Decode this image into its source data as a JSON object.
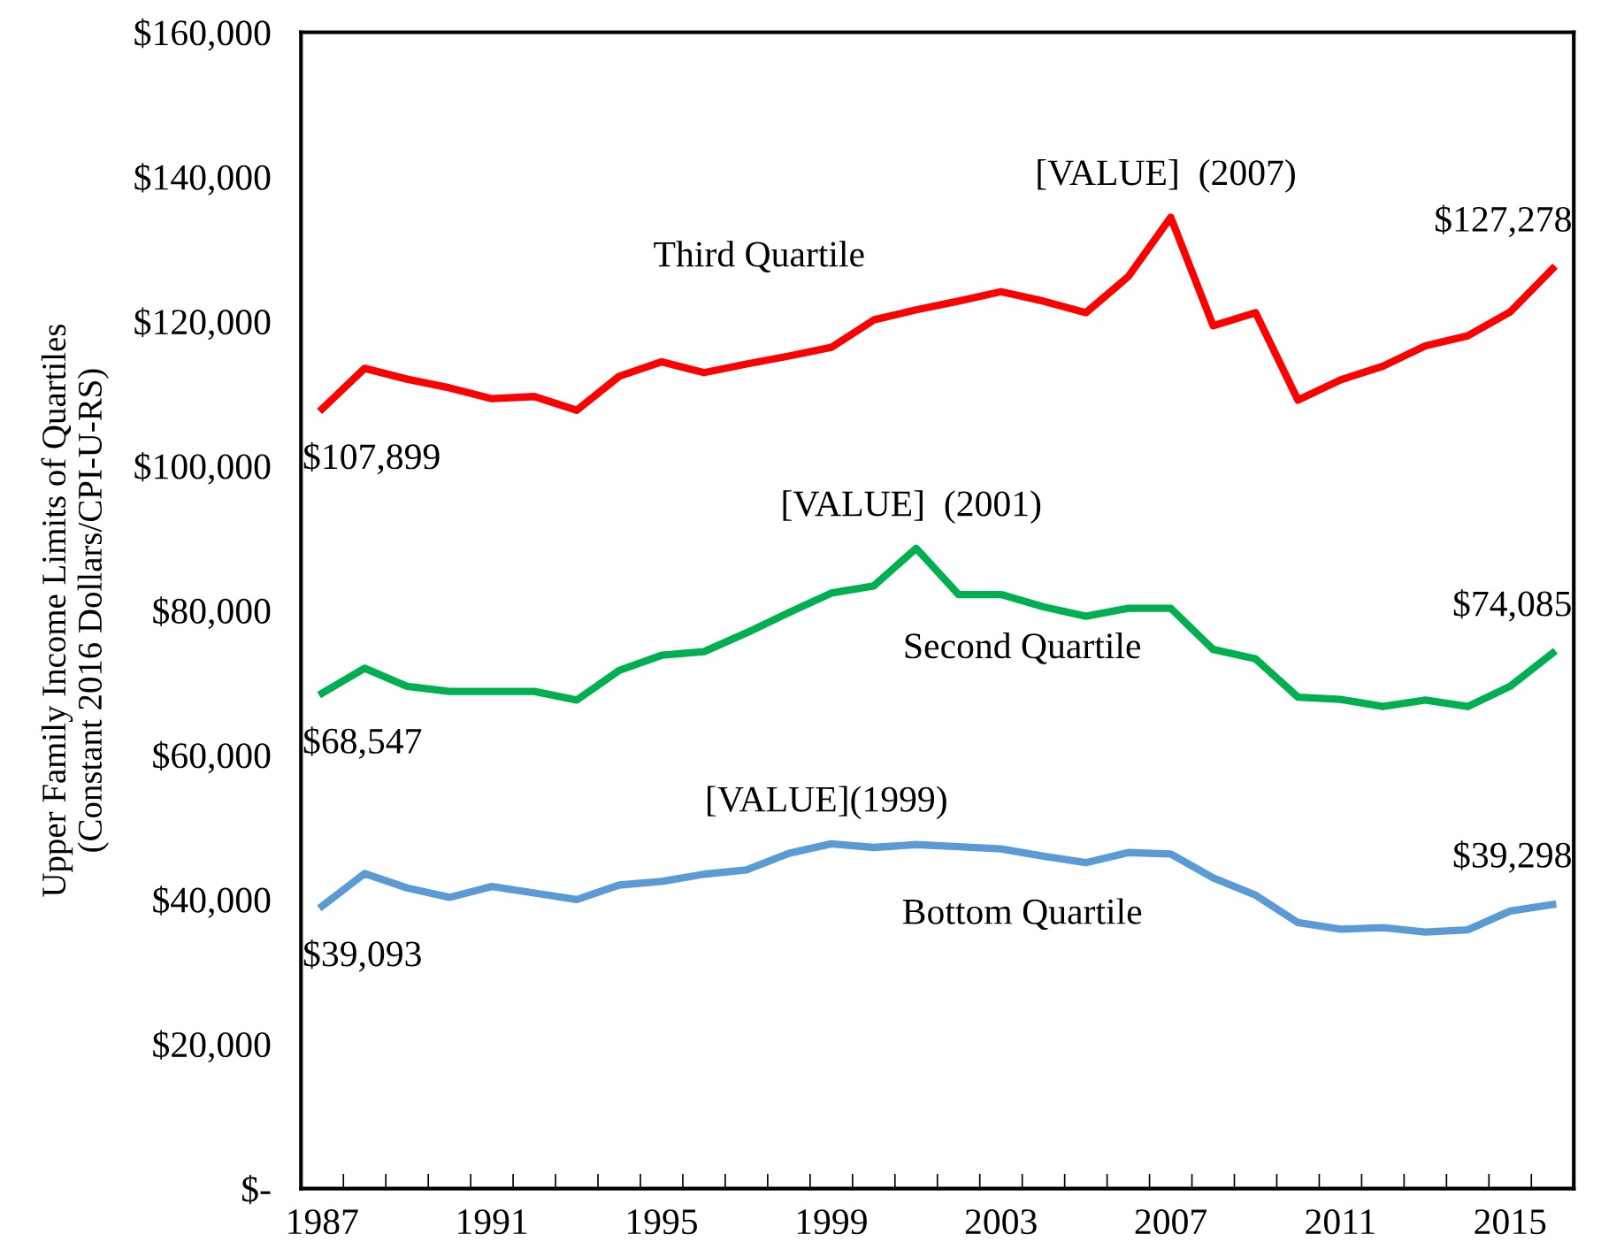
{
  "chart_data": {
    "type": "line",
    "ylabel": "Upper Family Income Limits of Quartiles\n(Constant 2016 Dollars/CPI-U-RS)",
    "x": [
      1987,
      1988,
      1989,
      1990,
      1991,
      1992,
      1993,
      1994,
      1995,
      1996,
      1997,
      1998,
      1999,
      2000,
      2001,
      2002,
      2003,
      2004,
      2005,
      2006,
      2007,
      2008,
      2009,
      2010,
      2011,
      2012,
      2013,
      2014,
      2015,
      2016
    ],
    "series": [
      {
        "name": "Third Quartile",
        "color": "#ff0000",
        "values": [
          107899,
          113500,
          112000,
          110800,
          109300,
          109600,
          107700,
          112400,
          114400,
          112900,
          114100,
          115200,
          116400,
          120200,
          121600,
          122800,
          124100,
          122800,
          121200,
          126200,
          134400,
          119400,
          121200,
          109100,
          111900,
          113800,
          116600,
          118000,
          121300,
          127278
        ]
      },
      {
        "name": "Second Quartile",
        "color": "#00b050",
        "values": [
          68547,
          72000,
          69500,
          68800,
          68800,
          68800,
          67600,
          71700,
          73800,
          74300,
          76900,
          79700,
          82400,
          83400,
          88600,
          82200,
          82200,
          80500,
          79200,
          80300,
          80300,
          74600,
          73300,
          68000,
          67700,
          66700,
          67600,
          66700,
          69500,
          74085
        ]
      },
      {
        "name": "Bottom Quartile",
        "color": "#5b9bd5",
        "values": [
          39093,
          43600,
          41600,
          40300,
          41800,
          40900,
          40000,
          42000,
          42500,
          43500,
          44100,
          46400,
          47700,
          47200,
          47600,
          47300,
          47000,
          46000,
          45100,
          46500,
          46300,
          43000,
          40600,
          36800,
          35900,
          36100,
          35500,
          35800,
          38400,
          39298
        ]
      }
    ],
    "annotations": [
      {
        "text": "$107,899",
        "x": 1987,
        "y": 107899
      },
      {
        "text": "[VALUE]  (2007)",
        "x": 2007,
        "y": 134400
      },
      {
        "text": "$127,278",
        "x": 2016,
        "y": 127278
      },
      {
        "text": "$68,547",
        "x": 1987,
        "y": 68547
      },
      {
        "text": "[VALUE]  (2001)",
        "x": 2001,
        "y": 88600
      },
      {
        "text": "$74,085",
        "x": 2016,
        "y": 74085
      },
      {
        "text": "$39,093",
        "x": 1987,
        "y": 39093
      },
      {
        "text": "[VALUE](1999)",
        "x": 1999,
        "y": 47700
      },
      {
        "text": "$39,298",
        "x": 2016,
        "y": 39298
      }
    ],
    "xlim": [
      1986.5,
      2016.5
    ],
    "xticks": [
      1987,
      1991,
      1995,
      1999,
      2003,
      2007,
      2011,
      2015,
      {
        "value": 1986.5,
        "label": null
      },
      {
        "value": 1987.5,
        "label": null
      },
      {
        "value": 1988.5,
        "label": null
      },
      {
        "value": 1989.5,
        "label": null
      },
      {
        "value": 1990.5,
        "label": null
      },
      {
        "value": 1991.5,
        "label": null
      },
      {
        "value": 1992.5,
        "label": null
      },
      {
        "value": 1993.5,
        "label": null
      },
      {
        "value": 1994.5,
        "label": null
      },
      {
        "value": 1995.5,
        "label": null
      },
      {
        "value": 1996.5,
        "label": null
      },
      {
        "value": 1997.5,
        "label": null
      },
      {
        "value": 1998.5,
        "label": null
      },
      {
        "value": 1999.5,
        "label": null
      },
      {
        "value": 2000.5,
        "label": null
      },
      {
        "value": 2001.5,
        "label": null
      },
      {
        "value": 2002.5,
        "label": null
      },
      {
        "value": 2003.5,
        "label": null
      },
      {
        "value": 2004.5,
        "label": null
      },
      {
        "value": 2005.5,
        "label": null
      },
      {
        "value": 2006.5,
        "label": null
      },
      {
        "value": 2007.5,
        "label": null
      },
      {
        "value": 2008.5,
        "label": null
      },
      {
        "value": 2009.5,
        "label": null
      },
      {
        "value": 2010.5,
        "label": null
      },
      {
        "value": 2011.5,
        "label": null
      },
      {
        "value": 2012.5,
        "label": null
      },
      {
        "value": 2013.5,
        "label": null
      },
      {
        "value": 2014.5,
        "label": null
      },
      {
        "value": 2015.5,
        "label": null
      },
      {
        "value": 2016.5,
        "label": null
      }
    ],
    "ylim": [
      0,
      160000
    ],
    "yticks": [
      {
        "value": 0,
        "label": "$-"
      },
      {
        "value": 20000,
        "label": "$20,000"
      },
      {
        "value": 40000,
        "label": "$40,000"
      },
      {
        "value": 60000,
        "label": "$60,000"
      },
      {
        "value": 80000,
        "label": "$80,000"
      },
      {
        "value": 100000,
        "label": "$100,000"
      },
      {
        "value": 120000,
        "label": "$120,000"
      },
      {
        "value": 140000,
        "label": "$140,000"
      },
      {
        "value": 160000,
        "label": "$160,000"
      }
    ],
    "grid": false,
    "legend": false,
    "marker": "none",
    "line_style": "solid"
  }
}
